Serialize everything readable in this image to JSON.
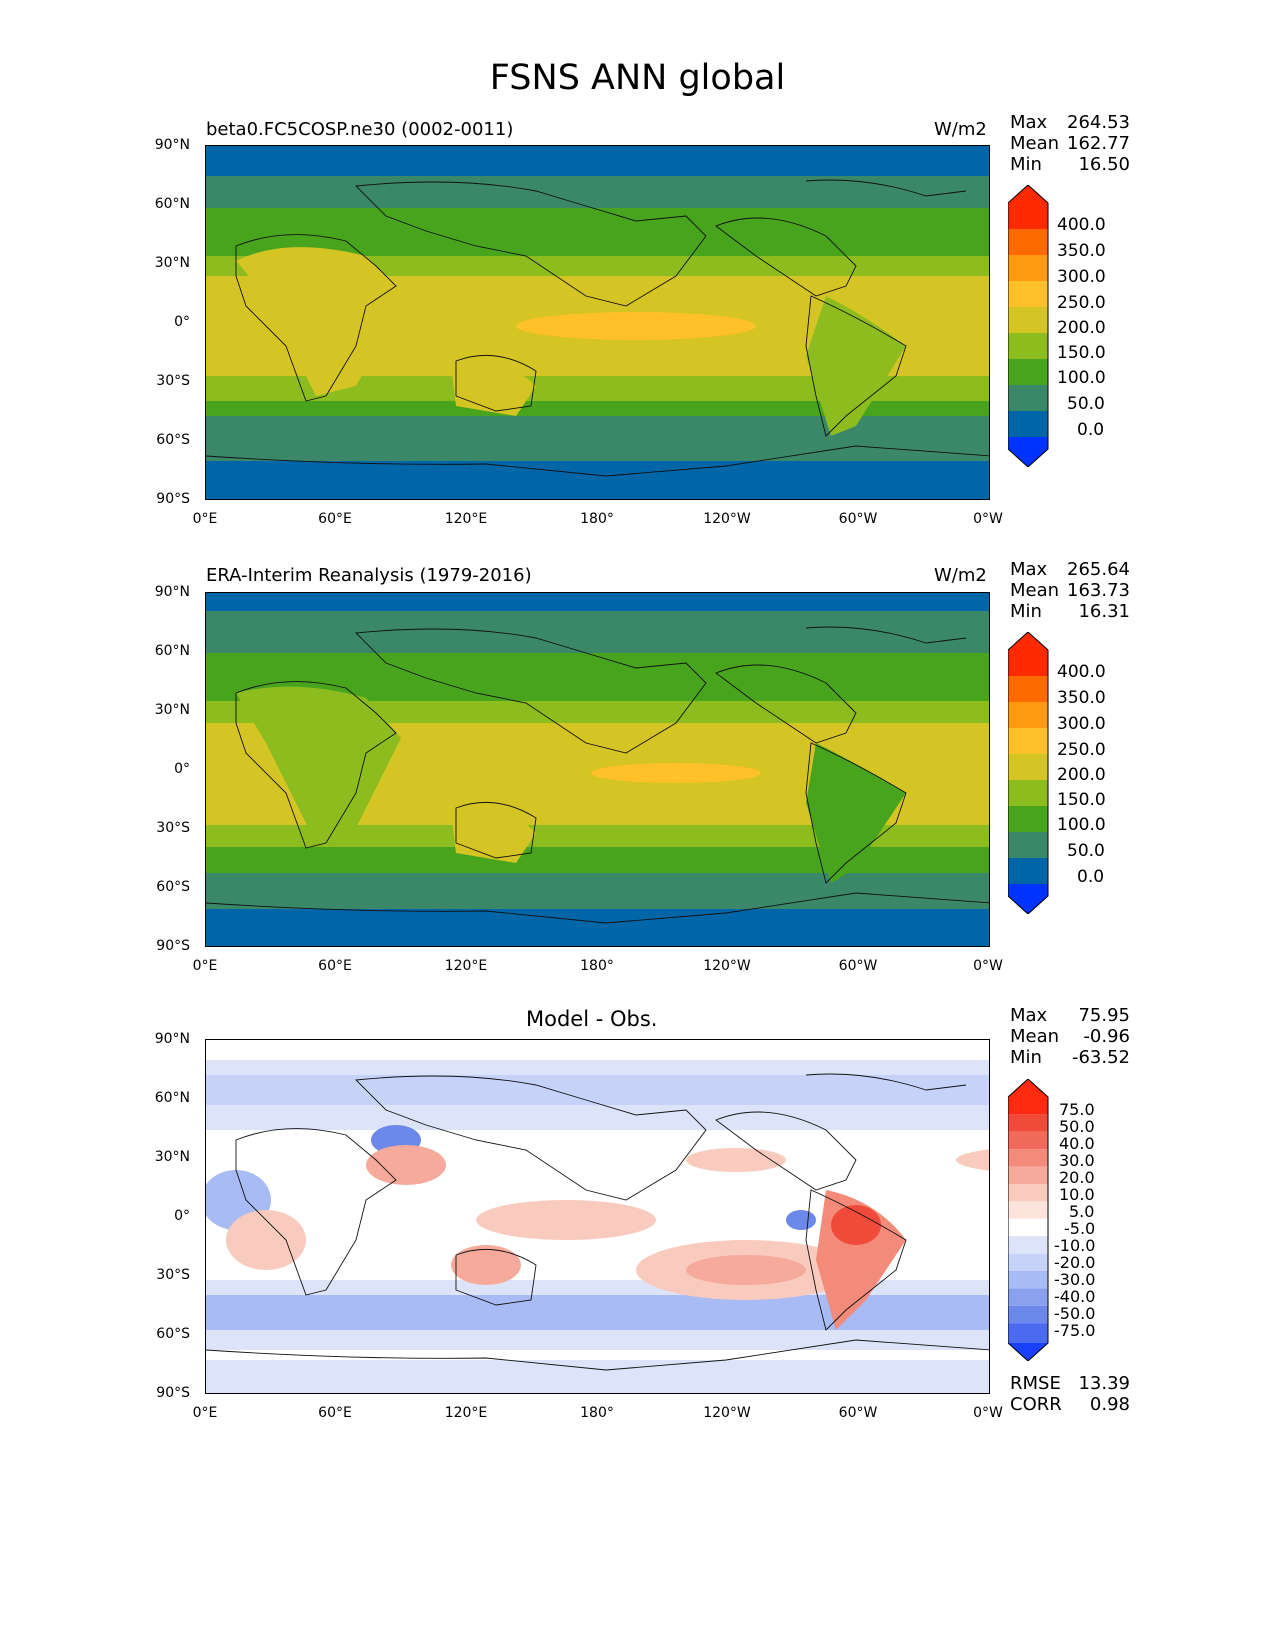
{
  "figure_title": "FSNS ANN global",
  "panels": [
    {
      "title": "beta0.FC5COSP.ne30 (0002-0011)",
      "units": "W/m2",
      "stats": {
        "max_label": "Max",
        "max": "264.53",
        "mean_label": "Mean",
        "mean": "162.77",
        "min_label": "Min",
        "min": "16.50"
      },
      "colorbar": {
        "levels": [
          "400.0",
          "350.0",
          "300.0",
          "250.0",
          "200.0",
          "150.0",
          "100.0",
          "50.0",
          "0.0"
        ],
        "colors": [
          "#ff2a00",
          "#ff6a00",
          "#ff9a10",
          "#ffc02a",
          "#d4c424",
          "#8cbc1e",
          "#48a41c",
          "#3a8868",
          "#0066a8",
          "#0033ff"
        ]
      }
    },
    {
      "title": "ERA-Interim Reanalysis (1979-2016)",
      "units": "W/m2",
      "stats": {
        "max_label": "Max",
        "max": "265.64",
        "mean_label": "Mean",
        "mean": "163.73",
        "min_label": "Min",
        "min": "16.31"
      },
      "colorbar": {
        "levels": [
          "400.0",
          "350.0",
          "300.0",
          "250.0",
          "200.0",
          "150.0",
          "100.0",
          "50.0",
          "0.0"
        ],
        "colors": [
          "#ff2a00",
          "#ff6a00",
          "#ff9a10",
          "#ffc02a",
          "#d4c424",
          "#8cbc1e",
          "#48a41c",
          "#3a8868",
          "#0066a8",
          "#0033ff"
        ]
      }
    },
    {
      "title": "Model - Obs.",
      "units": "",
      "stats": {
        "max_label": "Max",
        "max": "75.95",
        "mean_label": "Mean",
        "mean": "-0.96",
        "min_label": "Min",
        "min": "-63.52"
      },
      "metrics": {
        "rmse_label": "RMSE",
        "rmse": "13.39",
        "corr_label": "CORR",
        "corr": "0.98"
      },
      "colorbar": {
        "levels": [
          "75.0",
          "50.0",
          "40.0",
          "30.0",
          "20.0",
          "10.0",
          "5.0",
          "-5.0",
          "-10.0",
          "-20.0",
          "-30.0",
          "-40.0",
          "-50.0",
          "-75.0"
        ],
        "colors": [
          "#ff2a10",
          "#f04a3a",
          "#f26a5a",
          "#f48a7a",
          "#f6aa9c",
          "#f9cabe",
          "#fce4dc",
          "#ffffff",
          "#dde4fa",
          "#c6d2f8",
          "#a8bbf4",
          "#8aa2ee",
          "#6c88ea",
          "#4a6af0",
          "#1a40ff"
        ]
      }
    }
  ],
  "axes": {
    "y_ticks": [
      "90°N",
      "60°N",
      "30°N",
      "0°",
      "30°S",
      "60°S",
      "90°S"
    ],
    "x_ticks": [
      "0°E",
      "60°E",
      "120°E",
      "180°",
      "120°W",
      "60°W",
      "0°W"
    ]
  }
}
